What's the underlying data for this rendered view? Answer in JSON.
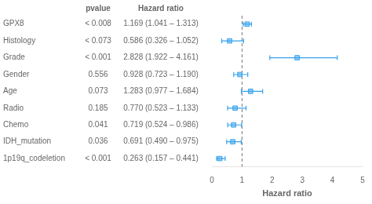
{
  "chart_data": {
    "type": "forest",
    "categories": [
      "GPX8",
      "Histology",
      "Grade",
      "Gender",
      "Age",
      "Radio",
      "Chemo",
      "IDH_mutation",
      "1p19q_codeletion"
    ],
    "values": [
      1.169,
      0.586,
      2.828,
      0.928,
      1.283,
      0.77,
      0.719,
      0.691,
      0.263
    ],
    "ci_low": [
      1.041,
      0.326,
      1.922,
      0.723,
      0.977,
      0.523,
      0.524,
      0.49,
      0.157
    ],
    "ci_high": [
      1.313,
      1.052,
      4.161,
      1.19,
      1.684,
      1.133,
      0.986,
      0.975,
      0.441
    ],
    "columns": [
      {
        "header": "pvalue",
        "labels": [
          "< 0.008",
          "< 0.073",
          "< 0.001",
          "0.556",
          "0.073",
          "0.185",
          "0.041",
          "0.036",
          "< 0.001"
        ]
      },
      {
        "header": "Hazard ratio",
        "labels": [
          "1.169 (1.041 – 1.313)",
          "0.586 (0.326 – 1.052)",
          "2.828 (1.922 – 4.161)",
          "0.928 (0.723 – 1.190)",
          "1.283 (0.977 – 1.684)",
          "0.770 (0.523 – 1.133)",
          "0.719 (0.524 – 0.986)",
          "0.691 (0.490 – 0.975)",
          "0.263 (0.157 – 0.441)"
        ]
      }
    ],
    "xlabel": "Hazard ratio",
    "xlim": [
      0,
      5
    ],
    "xticks": [
      0,
      1,
      2,
      3,
      4,
      5
    ],
    "refline": 1.0,
    "grid": false,
    "marker": "square"
  }
}
